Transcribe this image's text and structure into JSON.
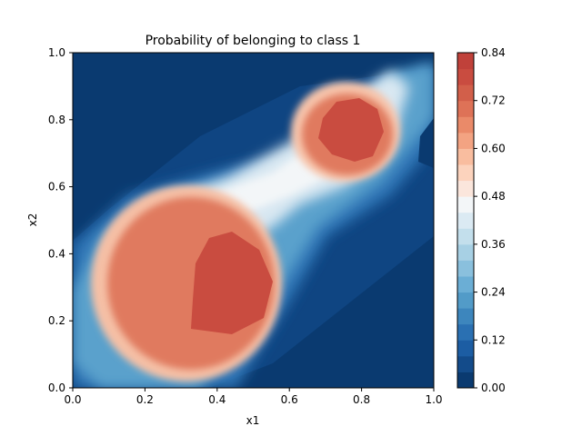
{
  "chart_data": {
    "type": "heatmap",
    "title": "Probability of belonging to class 1",
    "xlabel": "x1",
    "ylabel": "x2",
    "xlim": [
      0.0,
      1.0
    ],
    "ylim": [
      0.0,
      1.0
    ],
    "x_ticks": [
      "0.0",
      "0.2",
      "0.4",
      "0.6",
      "0.8",
      "1.0"
    ],
    "y_ticks": [
      "0.0",
      "0.2",
      "0.4",
      "0.6",
      "0.8",
      "1.0"
    ],
    "colorbar": {
      "range": [
        0.0,
        0.84
      ],
      "ticks": [
        "0.00",
        "0.12",
        "0.24",
        "0.36",
        "0.48",
        "0.60",
        "0.72",
        "0.84"
      ],
      "levels": [
        0.0,
        0.04,
        0.08,
        0.12,
        0.16,
        0.2,
        0.24,
        0.28,
        0.32,
        0.36,
        0.4,
        0.44,
        0.48,
        0.52,
        0.56,
        0.6,
        0.64,
        0.68,
        0.72,
        0.76,
        0.8,
        0.84
      ],
      "colors": [
        "#0a3a70",
        "#134b8a",
        "#1c5da3",
        "#2a70b2",
        "#3d86bd",
        "#529bc8",
        "#6baed5",
        "#8ac0dd",
        "#a7d0e4",
        "#c3dfec",
        "#dbeaf3",
        "#f3f6f8",
        "#fbe6dc",
        "#fcd3bd",
        "#f9bd9f",
        "#f3a382",
        "#ea8a69",
        "#de7257",
        "#d25f4a",
        "#c94c40",
        "#c0413a"
      ],
      "grid": false
    },
    "grid": false
  }
}
